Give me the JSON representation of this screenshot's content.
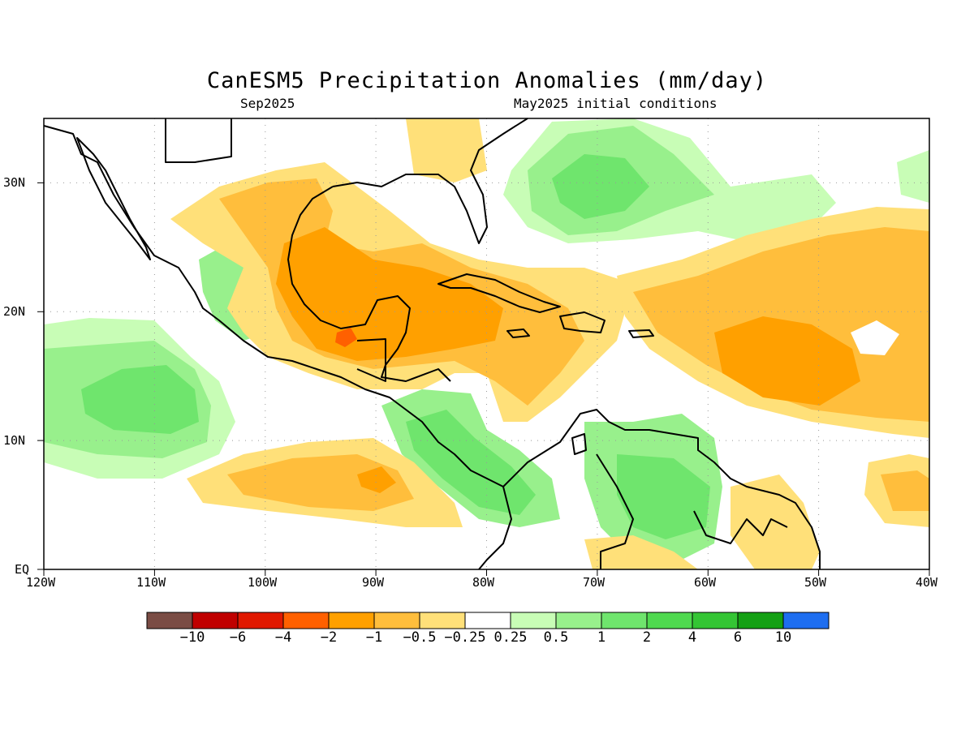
{
  "header": {
    "title": "CanESM5 Precipitation Anomalies (mm/day)",
    "left_subtitle": "Sep2025",
    "right_subtitle": "May2025 initial conditions"
  },
  "map": {
    "lon_labels": [
      "120W",
      "110W",
      "100W",
      "90W",
      "80W",
      "70W",
      "60W",
      "50W",
      "40W"
    ],
    "lat_labels": [
      "30N",
      "20N",
      "10N",
      "EQ"
    ],
    "extent": {
      "lon": [
        -120,
        -40
      ],
      "lat": [
        0,
        35
      ]
    },
    "grid": "dotted"
  },
  "colorbar": {
    "colors": [
      "#7a4c44",
      "#c00000",
      "#e01800",
      "#ff6000",
      "#ffa000",
      "#ffbe3c",
      "#ffe079",
      "#ffffff",
      "#c8fdb6",
      "#98f08c",
      "#6fe56d",
      "#4fd94f",
      "#34c534",
      "#14a014",
      "#1e6ef0"
    ],
    "labels": [
      "−10",
      "−6",
      "−4",
      "−2",
      "−1",
      "−0.5",
      "−0.25",
      "0.25",
      "0.5",
      "1",
      "2",
      "4",
      "6",
      "10"
    ]
  },
  "legend_palette": {
    "dry_moderate": "#ffbe3c",
    "dry_strong": "#ffa000",
    "wet_light": "#c8fdb6",
    "wet_moderate": "#98f08c",
    "wet_strong": "#6fe56d"
  }
}
